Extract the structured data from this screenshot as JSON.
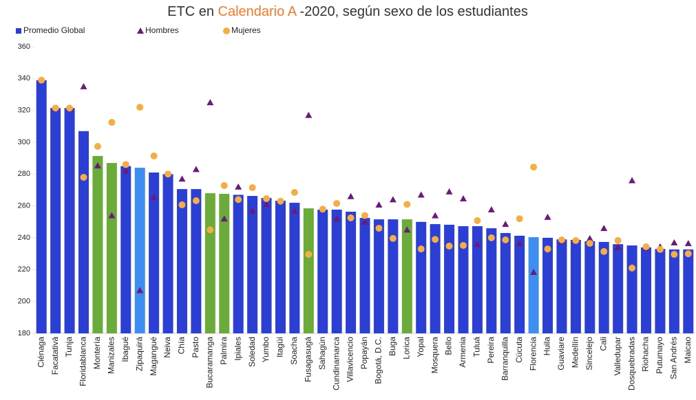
{
  "chart_data": {
    "type": "bar",
    "title_parts": [
      "ETC en ",
      "Calendario A",
      " -2020, según sexo de los estudiantes"
    ],
    "title_colors": [
      "#333333",
      "#f07a2a",
      "#333333"
    ],
    "categories": [
      "Ciénaga",
      "Facatativá",
      "Tunja",
      "Floridablanca",
      "Montería",
      "Manizales",
      "Ibagué",
      "Zipaquirá",
      "Magangué",
      "Neiva",
      "Chía",
      "Pasto",
      "Bucaramanga",
      "Palmira",
      "Ipiales",
      "Soledad",
      "Yumbo",
      "Itagüí",
      "Soacha",
      "Fusagasugá",
      "Sahagún",
      "Cundinamarca",
      "Villavicencio",
      "Popayán",
      "Bogotá, D.C.",
      "Buga",
      "Lorica",
      "Yopal",
      "Mosquera",
      "Bello",
      "Armenia",
      "Tuluá",
      "Pereira",
      "Barranquilla",
      "Cúcuta",
      "Florencia",
      "Huila",
      "Guaviare",
      "Medellín",
      "Sincelejo",
      "Cali",
      "Valledupar",
      "Dosquebradas",
      "Riohacha",
      "Putumayo",
      "San Andrés",
      "Maicao"
    ],
    "series": [
      {
        "name": "Promedio Global",
        "type": "bar",
        "color": "#2b3fd4",
        "colors": [
          "#2b3fd4",
          "#2b3fd4",
          "#2b3fd4",
          "#2b3fd4",
          "#6aab3a",
          "#6aab3a",
          "#2b3fd4",
          "#3d8ef0",
          "#2b3fd4",
          "#2b3fd4",
          "#2b3fd4",
          "#2b3fd4",
          "#6aab3a",
          "#6aab3a",
          "#2b3fd4",
          "#2b3fd4",
          "#2b3fd4",
          "#2b3fd4",
          "#2b3fd4",
          "#6aab3a",
          "#2b3fd4",
          "#2b3fd4",
          "#2b3fd4",
          "#2b3fd4",
          "#2b3fd4",
          "#2b3fd4",
          "#6aab3a",
          "#2b3fd4",
          "#2b3fd4",
          "#2b3fd4",
          "#2b3fd4",
          "#2b3fd4",
          "#2b3fd4",
          "#2b3fd4",
          "#2b3fd4",
          "#3d8ef0",
          "#2b3fd4",
          "#2b3fd4",
          "#2b3fd4",
          "#2b3fd4",
          "#2b3fd4",
          "#2b3fd4",
          "#2b3fd4",
          "#2b3fd4",
          "#2b3fd4",
          "#2b3fd4",
          "#2b3fd4"
        ],
        "values": [
          339,
          321.5,
          321.5,
          307,
          291.4,
          287,
          285,
          284,
          281,
          280,
          270.6,
          270.6,
          268,
          267.6,
          267,
          266.3,
          265,
          263.3,
          262,
          258.5,
          257.7,
          257.7,
          256.4,
          252.5,
          251.6,
          251.6,
          251.6,
          250,
          248.6,
          248.2,
          247.3,
          247.3,
          246,
          243,
          241.3,
          240.4,
          240,
          239,
          238.7,
          237.8,
          237.4,
          236,
          235.2,
          234,
          233,
          232.7,
          232.7
        ]
      },
      {
        "name": "Hombres",
        "type": "scatter",
        "marker": "triangle",
        "color": "#6a1b78",
        "values": [
          339,
          321,
          321,
          335,
          285.3,
          254,
          282,
          207,
          265.5,
          280,
          277,
          283,
          325,
          252,
          272,
          257,
          261,
          263,
          257,
          317,
          258,
          252,
          266,
          250,
          260.7,
          264,
          245,
          267,
          254,
          269,
          264.6,
          236,
          257.7,
          248.6,
          236.5,
          218.4,
          253,
          238,
          238,
          239.6,
          246,
          234,
          276,
          233.5,
          234.4,
          237,
          236.5
        ]
      },
      {
        "name": "Mujeres",
        "type": "scatter",
        "marker": "circle",
        "color": "#f5ae45",
        "values": [
          339,
          321.5,
          321.5,
          278,
          297.4,
          312.5,
          286,
          322,
          291.4,
          280,
          260.7,
          263.3,
          245,
          272.8,
          264,
          271.5,
          264.6,
          263,
          268.5,
          229.6,
          258,
          261.6,
          252.5,
          254,
          246,
          239.6,
          261,
          233,
          239,
          234.8,
          235.2,
          250.8,
          240,
          238.7,
          252,
          284.4,
          233,
          238.7,
          238.3,
          236.5,
          231.4,
          238.3,
          221,
          234.4,
          232.7,
          229.6,
          230
        ]
      }
    ],
    "ylim": [
      180,
      360
    ],
    "yticks": [
      180,
      200,
      220,
      240,
      260,
      280,
      300,
      320,
      340,
      360
    ],
    "grid": false
  }
}
